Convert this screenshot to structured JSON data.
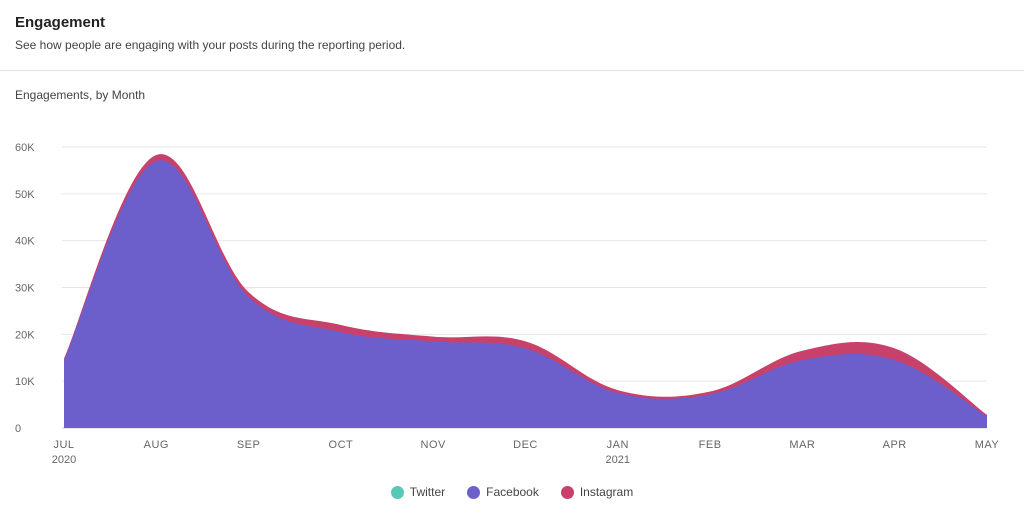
{
  "header": {
    "title": "Engagement",
    "subtitle": "See how people are engaging with your posts during the reporting period."
  },
  "chart_label": "Engagements, by Month",
  "chart_data": {
    "type": "area",
    "stacked": true,
    "categories": [
      "JUL",
      "AUG",
      "SEP",
      "OCT",
      "NOV",
      "DEC",
      "JAN",
      "FEB",
      "MAR",
      "APR",
      "MAY"
    ],
    "category_years": [
      "2020",
      "",
      "",
      "",
      "",
      "",
      "2021",
      "",
      "",
      "",
      ""
    ],
    "y_ticks": [
      "0",
      "10K",
      "20K",
      "30K",
      "40K",
      "50K",
      "60K"
    ],
    "ylim": [
      0,
      60000
    ],
    "grid": true,
    "legend_position": "bottom",
    "series": [
      {
        "name": "Twitter",
        "color": "#5ac8b9",
        "values": [
          0,
          0,
          0,
          0,
          0,
          0,
          0,
          0,
          0,
          0,
          0
        ]
      },
      {
        "name": "Facebook",
        "color": "#6c5fcc",
        "values": [
          14500,
          57000,
          28000,
          20500,
          18500,
          17000,
          7500,
          7200,
          14500,
          14500,
          2500
        ]
      },
      {
        "name": "Instagram",
        "color": "#c8416b",
        "values": [
          300,
          1300,
          1000,
          1500,
          1000,
          1500,
          600,
          600,
          2000,
          2500,
          300
        ]
      }
    ]
  }
}
